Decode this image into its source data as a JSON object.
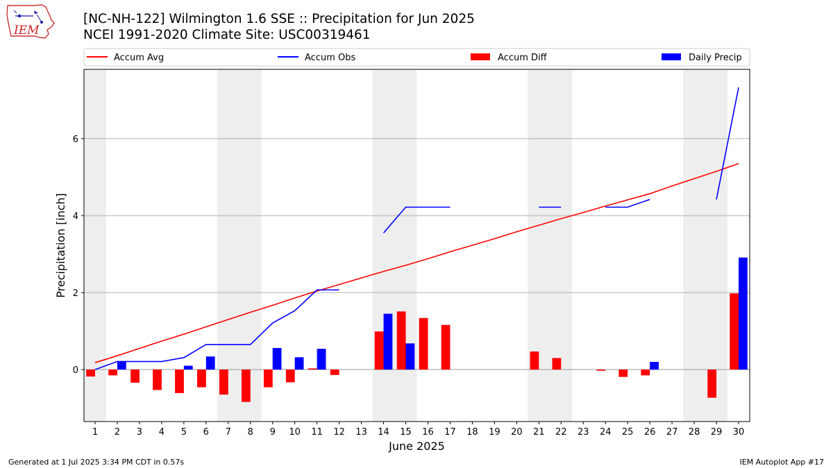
{
  "header": {
    "logo_text": "IEM",
    "title": "[NC-NH-122] Wilmington 1.6 SSE :: Precipitation for Jun 2025",
    "subtitle": "NCEI 1991-2020 Climate Site: USC00319461"
  },
  "footer": {
    "generated": "Generated at 1 Jul 2025 3:34 PM CDT in 0.57s",
    "app": "IEM Autoplot App #17"
  },
  "colors": {
    "avg": "#ff0000",
    "obs": "#0000ff",
    "diff": "#ff0000",
    "daily": "#0000ff",
    "weekend_shade": "#eeeeee",
    "grid": "#b0b0b0"
  },
  "chart_data": {
    "type": "bar",
    "xlabel": "June 2025",
    "ylabel": "Precipitation [inch]",
    "xlim": [
      0.5,
      30.5
    ],
    "ylim": [
      -1.35,
      7.8
    ],
    "yticks": [
      0,
      2,
      4,
      6
    ],
    "grid": "y",
    "legend_placement": "top",
    "legend": [
      {
        "label": "Accum Avg",
        "kind": "line",
        "color": "#ff0000"
      },
      {
        "label": "Accum Obs",
        "kind": "line",
        "color": "#0000ff"
      },
      {
        "label": "Accum Diff",
        "kind": "bar",
        "color": "#ff0000"
      },
      {
        "label": "Daily Precip",
        "kind": "bar",
        "color": "#0000ff"
      }
    ],
    "days": [
      1,
      2,
      3,
      4,
      5,
      6,
      7,
      8,
      9,
      10,
      11,
      12,
      13,
      14,
      15,
      16,
      17,
      18,
      19,
      20,
      21,
      22,
      23,
      24,
      25,
      26,
      27,
      28,
      29,
      30
    ],
    "weekend_ranges": [
      [
        0.5,
        1.5
      ],
      [
        6.5,
        8.5
      ],
      [
        13.5,
        15.5
      ],
      [
        20.5,
        22.5
      ],
      [
        27.5,
        29.5
      ]
    ],
    "series": [
      {
        "name": "Accum Avg",
        "type": "line",
        "values": [
          0.18,
          0.36,
          0.55,
          0.74,
          0.92,
          1.11,
          1.3,
          1.49,
          1.67,
          1.86,
          2.04,
          2.21,
          2.38,
          2.55,
          2.71,
          2.88,
          3.06,
          3.23,
          3.4,
          3.58,
          3.75,
          3.92,
          4.08,
          4.25,
          4.41,
          4.57,
          4.77,
          4.96,
          5.15,
          5.35
        ]
      },
      {
        "name": "Accum Obs",
        "type": "line",
        "values": [
          0.0,
          0.21,
          0.21,
          0.21,
          0.31,
          0.65,
          0.65,
          0.65,
          1.21,
          1.53,
          2.07,
          2.07,
          null,
          3.55,
          4.22,
          4.22,
          4.22,
          null,
          null,
          null,
          4.22,
          4.22,
          null,
          4.22,
          4.22,
          4.42,
          null,
          null,
          4.42,
          7.33
        ]
      },
      {
        "name": "Accum Diff",
        "type": "bar",
        "values": [
          -0.18,
          -0.15,
          -0.34,
          -0.53,
          -0.61,
          -0.46,
          -0.65,
          -0.84,
          -0.46,
          -0.33,
          0.03,
          -0.14,
          null,
          0.99,
          1.51,
          1.34,
          1.16,
          null,
          null,
          null,
          0.47,
          0.3,
          null,
          -0.03,
          -0.19,
          -0.15,
          null,
          null,
          -0.73,
          1.98
        ]
      },
      {
        "name": "Daily Precip",
        "type": "bar",
        "values": [
          0,
          0.21,
          0,
          0,
          0.1,
          0.34,
          0,
          0,
          0.56,
          0.32,
          0.54,
          0,
          0,
          1.45,
          0.68,
          0,
          0,
          0,
          0,
          0,
          0,
          0,
          0,
          0,
          0,
          0.2,
          0,
          0,
          0,
          2.91
        ]
      }
    ]
  }
}
